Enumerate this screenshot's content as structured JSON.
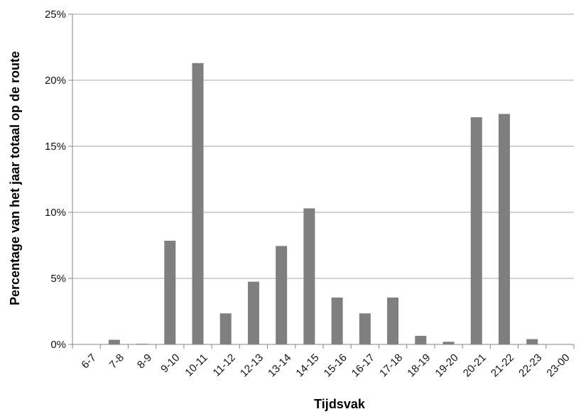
{
  "chart_data": {
    "type": "bar",
    "title": "",
    "xlabel": "Tijdsvak",
    "ylabel": "Percentage van het jaar totaal op de route",
    "categories": [
      "6-7",
      "7-8",
      "8-9",
      "9-10",
      "10-11",
      "11-12",
      "12-13",
      "13-14",
      "14-15",
      "15-16",
      "16-17",
      "17-18",
      "18-19",
      "19-20",
      "20-21",
      "21-22",
      "22-23",
      "23-00"
    ],
    "values": [
      0.0,
      0.35,
      0.05,
      7.85,
      21.3,
      2.35,
      4.75,
      7.45,
      10.3,
      3.55,
      2.35,
      3.55,
      0.65,
      0.2,
      17.2,
      17.45,
      0.4,
      0.0
    ],
    "ylim": [
      0,
      25
    ],
    "yticks": [
      0,
      5,
      10,
      15,
      20,
      25
    ],
    "ytick_labels": [
      "0%",
      "5%",
      "10%",
      "15%",
      "20%",
      "25%"
    ],
    "grid": true,
    "legend": "none",
    "colors": {
      "bar": "#7f7f7f",
      "grid": "#a6a6a6",
      "axis": "#868686",
      "text": "#111111"
    }
  }
}
